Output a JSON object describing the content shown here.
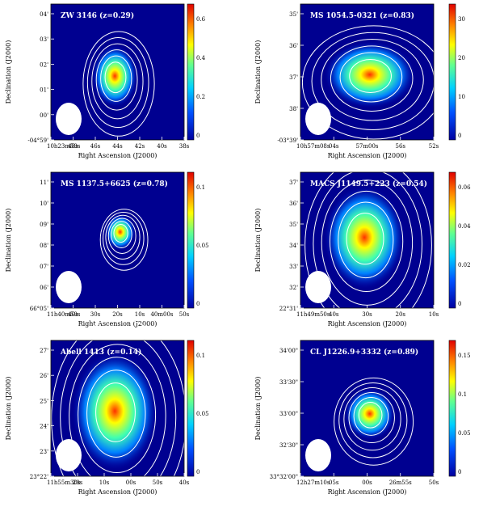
{
  "figure": {
    "panels": [
      {
        "title": "ZW 3146 (z=0.29)",
        "ylabel": "Declination (J2000)",
        "xlabel": "Right Ascension (J2000)",
        "y_ticks": [
          "04'",
          "03'",
          "02'",
          "01'",
          "00'",
          "-04°59'"
        ],
        "x_ticks": [
          "10h23m50s",
          "48s",
          "46s",
          "44s",
          "42s",
          "40s",
          "38s"
        ],
        "colorbar_ticks": [
          "0.6",
          "0.4",
          "0.2",
          "0"
        ],
        "cluster": {
          "x": 0.48,
          "y": 0.53,
          "rx": 0.09,
          "ry": 0.12
        }
      },
      {
        "title": "MS 1054.5-0321 (z=0.83)",
        "ylabel": "Declination (J2000)",
        "xlabel": "Right Ascension (J2000)",
        "y_ticks": [
          "35'",
          "36'",
          "37'",
          "38'",
          "-03°39'"
        ],
        "x_ticks": [
          "10h57m08s",
          "04s",
          "57m00s",
          "56s",
          "52s"
        ],
        "colorbar_ticks": [
          "30",
          "20",
          "10",
          "0"
        ],
        "cluster": {
          "x": 0.52,
          "y": 0.52,
          "rx": 0.18,
          "ry": 0.13
        }
      },
      {
        "title": "MS 1137.5+6625 (z=0.78)",
        "ylabel": "Declination (J2000)",
        "xlabel": "Right Ascension (J2000)",
        "y_ticks": [
          "11'",
          "10'",
          "09'",
          "08'",
          "07'",
          "06'",
          "66°05'"
        ],
        "x_ticks": [
          "11h40m50s",
          "40s",
          "30s",
          "20s",
          "10s",
          "40m00s",
          "50s"
        ],
        "colorbar_ticks": [
          "0.1",
          "0.05",
          "0"
        ],
        "cluster": {
          "x": 0.52,
          "y": 0.44,
          "rx": 0.06,
          "ry": 0.07
        }
      },
      {
        "title": "MACS J1149.5+223 (z=0.54)",
        "ylabel": "Declination (J2000)",
        "xlabel": "Right Ascension (J2000)",
        "y_ticks": [
          "37'",
          "36'",
          "35'",
          "34'",
          "33'",
          "32'",
          "22°31'"
        ],
        "x_ticks": [
          "11h49m50s",
          "40s",
          "30s",
          "20s",
          "10s"
        ],
        "colorbar_ticks": [
          "0.06",
          "0.04",
          "0.02",
          "0"
        ],
        "cluster": {
          "x": 0.48,
          "y": 0.48,
          "rx": 0.16,
          "ry": 0.2
        }
      },
      {
        "title": "Abell 1413 (z=0.14)",
        "ylabel": "Declination (J2000)",
        "xlabel": "Right Ascension (J2000)",
        "y_ticks": [
          "27'",
          "26'",
          "25'",
          "24'",
          "23'",
          "23°22'"
        ],
        "x_ticks": [
          "11h55m30s",
          "20s",
          "10s",
          "00s",
          "50s",
          "40s"
        ],
        "colorbar_ticks": [
          "0.1",
          "0.05",
          "0"
        ],
        "cluster": {
          "x": 0.48,
          "y": 0.52,
          "rx": 0.17,
          "ry": 0.23
        }
      },
      {
        "title": "CL J1226.9+3332 (z=0.89)",
        "ylabel": "Declination (J2000)",
        "xlabel": "Right Ascension (J2000)",
        "y_ticks": [
          "34'00\"",
          "33'30\"",
          "33'00\"",
          "32'30\"",
          "33°32'00\""
        ],
        "x_ticks": [
          "12h27m10s",
          "05s",
          "00s",
          "26m55s",
          "50s"
        ],
        "colorbar_ticks": [
          "0.15",
          "0.1",
          "0.05",
          "0"
        ],
        "cluster": {
          "x": 0.52,
          "y": 0.54,
          "rx": 0.1,
          "ry": 0.1
        }
      }
    ]
  }
}
